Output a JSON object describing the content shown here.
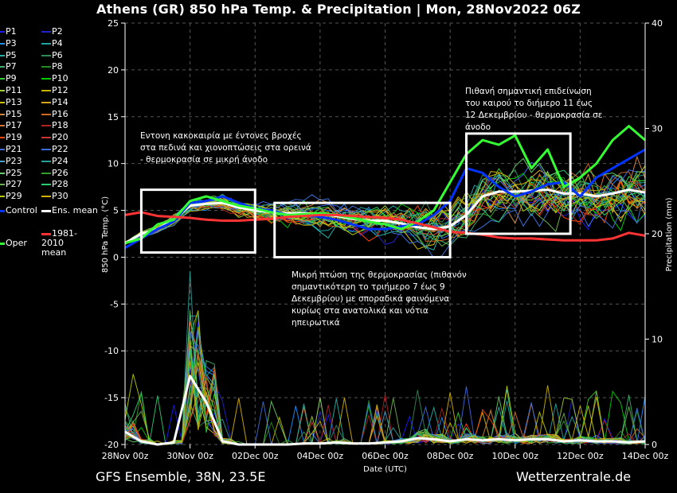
{
  "title": "Athens  (GR)  850 hPa Temp. & Precipitation | Mon, 28Nov2022 06Z",
  "footer_left": "GFS Ensemble, 38N, 23.5E",
  "footer_right": "Wetterzentrale.de",
  "chart_data": {
    "type": "line",
    "xlabel": "Date (UTC)",
    "ylabel": "850 hPa Temp. (°C)",
    "ylabel_right": "Precipitation (mm)",
    "x_ticks": [
      "28Nov 00z",
      "30Nov 00z",
      "02Dec 00z",
      "04Dec 00z",
      "06Dec 00z",
      "08Dec 00z",
      "10Dec 00z",
      "12Dec 00z",
      "14Dec 00z"
    ],
    "x_range_days": [
      0,
      16
    ],
    "ylim": [
      -20,
      25
    ],
    "y_ticks": [
      -20,
      -15,
      -10,
      -5,
      0,
      5,
      10,
      15,
      20,
      25
    ],
    "y2lim": [
      0,
      40
    ],
    "y2_ticks": [
      0,
      10,
      20,
      30,
      40
    ],
    "grid": true,
    "colors": {
      "control": "#0033ff",
      "ens_mean": "#ffffff",
      "oper": "#33ff33",
      "climate_mean": "#ff3333",
      "background": "#000000"
    },
    "legend": {
      "members": [
        {
          "name": "P1",
          "color": "#1a1aff"
        },
        {
          "name": "P2",
          "color": "#2222cc"
        },
        {
          "name": "P3",
          "color": "#1e90ff"
        },
        {
          "name": "P4",
          "color": "#1fa3a3"
        },
        {
          "name": "P5",
          "color": "#20b2aa"
        },
        {
          "name": "P6",
          "color": "#2e8b57"
        },
        {
          "name": "P7",
          "color": "#3cb371"
        },
        {
          "name": "P8",
          "color": "#228b22"
        },
        {
          "name": "P9",
          "color": "#32cd32"
        },
        {
          "name": "P10",
          "color": "#00cc00"
        },
        {
          "name": "P11",
          "color": "#9acd32"
        },
        {
          "name": "P12",
          "color": "#c8b400"
        },
        {
          "name": "P13",
          "color": "#d4c000"
        },
        {
          "name": "P14",
          "color": "#daa520"
        },
        {
          "name": "P15",
          "color": "#cd853f"
        },
        {
          "name": "P16",
          "color": "#d2691e"
        },
        {
          "name": "P17",
          "color": "#e07030"
        },
        {
          "name": "P18",
          "color": "#b22222"
        },
        {
          "name": "P19",
          "color": "#ff4500"
        },
        {
          "name": "P20",
          "color": "#cc3333"
        },
        {
          "name": "P21",
          "color": "#4169e1"
        },
        {
          "name": "P22",
          "color": "#3a6fd8"
        },
        {
          "name": "P23",
          "color": "#48a0c8"
        },
        {
          "name": "P24",
          "color": "#2aa198"
        },
        {
          "name": "P25",
          "color": "#66cc66"
        },
        {
          "name": "P26",
          "color": "#33a02c"
        },
        {
          "name": "P27",
          "color": "#6ab04c"
        },
        {
          "name": "P28",
          "color": "#2ecc71"
        },
        {
          "name": "P29",
          "color": "#b8cc00"
        },
        {
          "name": "P30",
          "color": "#d6b000"
        }
      ],
      "control": "Control",
      "ens_mean": "Ens. mean",
      "oper": "Oper",
      "climate": "1981-2010 mean"
    },
    "series": [
      {
        "name": "Ens. mean",
        "x": [
          0,
          0.5,
          1,
          1.5,
          2,
          2.5,
          3,
          3.5,
          4,
          4.5,
          5,
          5.5,
          6,
          6.5,
          7,
          7.5,
          8,
          8.5,
          9,
          9.5,
          10,
          10.5,
          11,
          11.5,
          12,
          12.5,
          13,
          13.5,
          14,
          14.5,
          15,
          15.5,
          16
        ],
        "values": [
          1.5,
          2.5,
          3.0,
          4.0,
          5.5,
          5.7,
          5.8,
          5.3,
          5.0,
          4.8,
          4.7,
          4.7,
          4.6,
          4.4,
          4.1,
          3.9,
          3.9,
          3.6,
          3.2,
          3.0,
          3.3,
          4.5,
          6.5,
          7.0,
          7.0,
          7.1,
          7.2,
          6.8,
          6.8,
          6.5,
          6.8,
          7.2,
          6.9
        ]
      },
      {
        "name": "Control",
        "x": [
          0,
          0.5,
          1,
          1.5,
          2,
          2.5,
          3,
          3.5,
          4,
          4.5,
          5,
          5.5,
          6,
          6.5,
          7,
          7.5,
          8,
          8.5,
          9,
          9.5,
          10,
          10.5,
          11,
          11.5,
          12,
          12.5,
          13,
          13.5,
          14,
          14.5,
          15,
          15.5,
          16
        ],
        "values": [
          1.0,
          2.0,
          3.0,
          3.8,
          5.8,
          6.0,
          6.5,
          5.8,
          5.2,
          5.0,
          4.5,
          4.5,
          4.3,
          4.0,
          3.5,
          3.0,
          3.0,
          3.3,
          3.5,
          4.5,
          6.0,
          9.5,
          9.0,
          7.5,
          6.5,
          7.0,
          7.8,
          8.0,
          6.5,
          8.5,
          9.5,
          10.5,
          11.5
        ]
      },
      {
        "name": "Oper",
        "x": [
          0,
          0.5,
          1,
          1.5,
          2,
          2.5,
          3,
          3.5,
          4,
          4.5,
          5,
          5.5,
          6,
          6.5,
          7,
          7.5,
          8,
          8.5,
          9,
          9.5,
          10,
          10.5,
          11,
          11.5,
          12,
          12.5,
          13,
          13.5,
          14,
          14.5,
          15,
          15.5,
          16
        ],
        "values": [
          1.5,
          2.0,
          3.5,
          4.0,
          6.0,
          6.5,
          6.0,
          5.5,
          5.2,
          4.8,
          4.5,
          4.6,
          4.7,
          4.5,
          4.2,
          3.8,
          3.5,
          3.0,
          3.8,
          5.0,
          8.0,
          11.0,
          12.5,
          12.0,
          13.0,
          9.5,
          11.5,
          7.5,
          8.5,
          10.0,
          12.5,
          14.0,
          12.5
        ]
      },
      {
        "name": "1981-2010 mean",
        "x": [
          0,
          0.5,
          1,
          1.5,
          2,
          2.5,
          3,
          3.5,
          4,
          4.5,
          5,
          5.5,
          6,
          6.5,
          7,
          7.5,
          8,
          8.5,
          9,
          9.5,
          10,
          10.5,
          11,
          11.5,
          12,
          12.5,
          13,
          13.5,
          14,
          14.5,
          15,
          15.5,
          16
        ],
        "values": [
          4.5,
          4.8,
          4.4,
          4.3,
          4.2,
          4.0,
          3.9,
          3.9,
          4.0,
          4.1,
          4.3,
          4.4,
          4.5,
          4.5,
          4.4,
          4.3,
          4.2,
          4.0,
          3.6,
          3.2,
          2.7,
          2.6,
          2.4,
          2.1,
          2.0,
          2.0,
          1.9,
          1.8,
          1.8,
          1.8,
          2.0,
          2.6,
          2.3
        ]
      },
      {
        "name": "Ens. mean precipitation",
        "axis": "right",
        "x": [
          0,
          0.5,
          1,
          1.5,
          2,
          2.5,
          3,
          3.5,
          4,
          4.5,
          5,
          5.5,
          6,
          6.5,
          7,
          7.5,
          8,
          8.5,
          9,
          9.5,
          10,
          10.5,
          11,
          11.5,
          12,
          12.5,
          13,
          13.5,
          14,
          14.5,
          15,
          15.5,
          16
        ],
        "values": [
          1.2,
          0.3,
          0,
          0.2,
          6.5,
          4.0,
          0.3,
          0,
          0,
          0,
          0,
          0.1,
          0.1,
          0.2,
          0.1,
          0.1,
          0.2,
          0.3,
          0.6,
          0.5,
          0.3,
          0.5,
          0.4,
          0.5,
          0.4,
          0.5,
          0.5,
          0.3,
          0.4,
          0.3,
          0.3,
          0.2,
          0.3
        ]
      }
    ],
    "annotations": [
      "Εντονη κακοκαιρία με έντονες βροχές στα πεδινά και χιονοπτώσεις στα ορεινά - θερμοκρασία σε μικρή άνοδο",
      "Μικρή πτώση της θερμοκρασίας (πιθανόν σημαντικότερη το τριήμερο 7 έως 9 Δεκεμβρίου) με σποραδικά φαινόμενα κυρίως στα ανατολικά και νότια ηπειρωτικά",
      "Πιθανή σημαντική επιδείνωση του καιρού το διήμερο 11 έως 12 Δεκεμβρίου - θερμοκρασία σε άνοδο"
    ],
    "boxes": [
      {
        "x_range_days": [
          0.5,
          4.0
        ],
        "y_range": [
          0.5,
          7.2
        ]
      },
      {
        "x_range_days": [
          4.6,
          10.0
        ],
        "y_range": [
          0.0,
          5.8
        ]
      },
      {
        "x_range_days": [
          10.5,
          13.7
        ],
        "y_range": [
          2.5,
          13.2
        ]
      }
    ]
  }
}
